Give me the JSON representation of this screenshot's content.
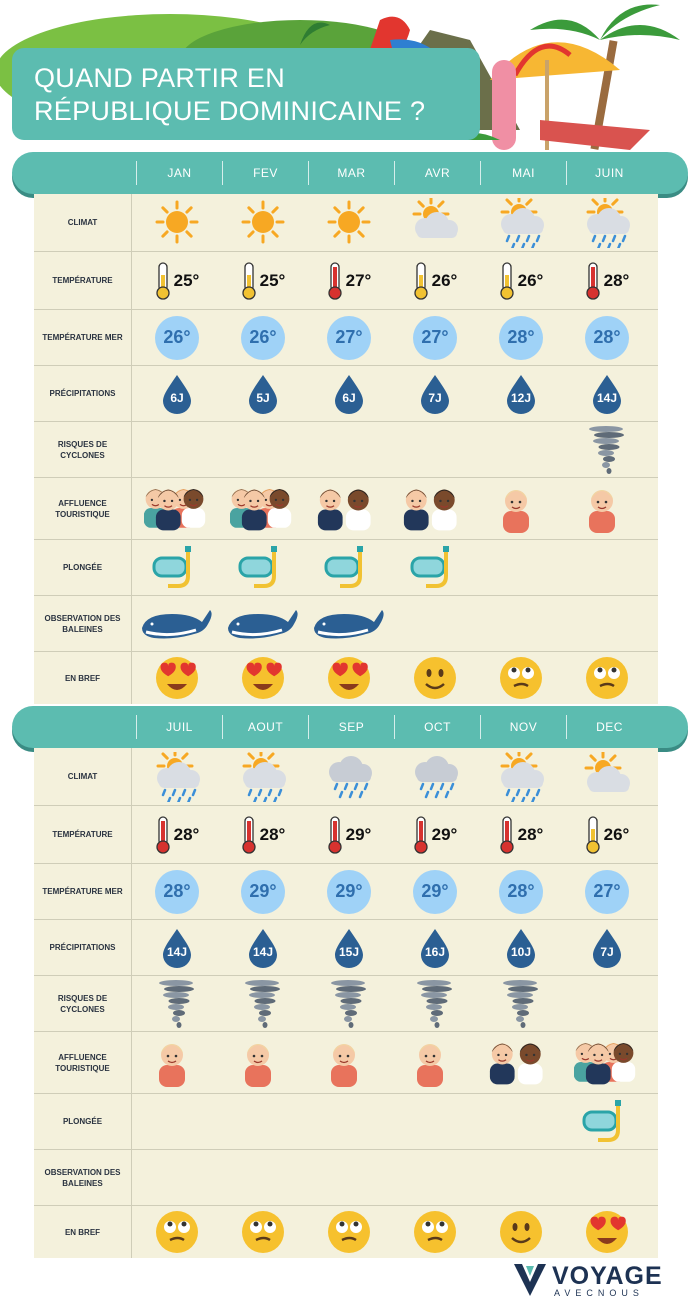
{
  "title": {
    "line1": "QUAND PARTIR EN",
    "line2": "RÉPUBLIQUE DOMINICAINE ?"
  },
  "row_labels": {
    "climat": "CLIMAT",
    "temperature": "TEMPÉRATURE",
    "temperature_mer": "TEMPÉRATURE MER",
    "precipitations": "PRÉCIPITATIONS",
    "cyclones": "RISQUES DE CYCLONES",
    "affluence": "AFFLUENCE TOURISTIQUE",
    "plongee": "PLONGÉE",
    "baleines": "OBSERVATION DES BALEINES",
    "bref": "EN BREF"
  },
  "sections": [
    {
      "months": [
        {
          "name": "JAN",
          "climate": "sun",
          "temp": "25°",
          "thermo": "mid",
          "sea": "26°",
          "rain": "6J",
          "cyclone": false,
          "crowd": "4",
          "diving": true,
          "whales": true,
          "mood": "love"
        },
        {
          "name": "FEV",
          "climate": "sun",
          "temp": "25°",
          "thermo": "mid",
          "sea": "26°",
          "rain": "5J",
          "cyclone": false,
          "crowd": "4",
          "diving": true,
          "whales": true,
          "mood": "love"
        },
        {
          "name": "MAR",
          "climate": "sun",
          "temp": "27°",
          "thermo": "high",
          "sea": "27°",
          "rain": "6J",
          "cyclone": false,
          "crowd": "2",
          "diving": true,
          "whales": true,
          "mood": "love"
        },
        {
          "name": "AVR",
          "climate": "sun-cloud",
          "temp": "26°",
          "thermo": "mid",
          "sea": "27°",
          "rain": "7J",
          "cyclone": false,
          "crowd": "2",
          "diving": true,
          "whales": false,
          "mood": "smile"
        },
        {
          "name": "MAI",
          "climate": "sun-rain",
          "temp": "26°",
          "thermo": "mid",
          "sea": "28°",
          "rain": "12J",
          "cyclone": false,
          "crowd": "1",
          "diving": false,
          "whales": false,
          "mood": "meh"
        },
        {
          "name": "JUIN",
          "climate": "sun-rain",
          "temp": "28°",
          "thermo": "high",
          "sea": "28°",
          "rain": "14J",
          "cyclone": true,
          "crowd": "1",
          "diving": false,
          "whales": false,
          "mood": "meh"
        }
      ]
    },
    {
      "months": [
        {
          "name": "JUIL",
          "climate": "sun-rain",
          "temp": "28°",
          "thermo": "high",
          "sea": "28°",
          "rain": "14J",
          "cyclone": true,
          "crowd": "1",
          "diving": false,
          "whales": false,
          "mood": "meh"
        },
        {
          "name": "AOUT",
          "climate": "sun-rain",
          "temp": "28°",
          "thermo": "high",
          "sea": "29°",
          "rain": "14J",
          "cyclone": true,
          "crowd": "1",
          "diving": false,
          "whales": false,
          "mood": "meh"
        },
        {
          "name": "SEP",
          "climate": "rain",
          "temp": "29°",
          "thermo": "high",
          "sea": "29°",
          "rain": "15J",
          "cyclone": true,
          "crowd": "1",
          "diving": false,
          "whales": false,
          "mood": "meh"
        },
        {
          "name": "OCT",
          "climate": "rain",
          "temp": "29°",
          "thermo": "high",
          "sea": "29°",
          "rain": "16J",
          "cyclone": true,
          "crowd": "1",
          "diving": false,
          "whales": false,
          "mood": "meh"
        },
        {
          "name": "NOV",
          "climate": "sun-rain",
          "temp": "28°",
          "thermo": "high",
          "sea": "28°",
          "rain": "10J",
          "cyclone": true,
          "crowd": "2",
          "diving": false,
          "whales": false,
          "mood": "smile"
        },
        {
          "name": "DEC",
          "climate": "sun-cloud",
          "temp": "26°",
          "thermo": "mid",
          "sea": "27°",
          "rain": "7J",
          "cyclone": false,
          "crowd": "4",
          "diving": true,
          "whales": false,
          "mood": "love"
        }
      ]
    }
  ],
  "logo": {
    "name": "VOYAGE",
    "sub": "AVECNOUS"
  },
  "colors": {
    "teal": "#5cbcb0",
    "table_bg": "#f4f1dc",
    "drop": "#2b5f93",
    "sea_circle": "#9fd2f7",
    "sun": "#f7a823",
    "emoji": "#f6c12e"
  }
}
